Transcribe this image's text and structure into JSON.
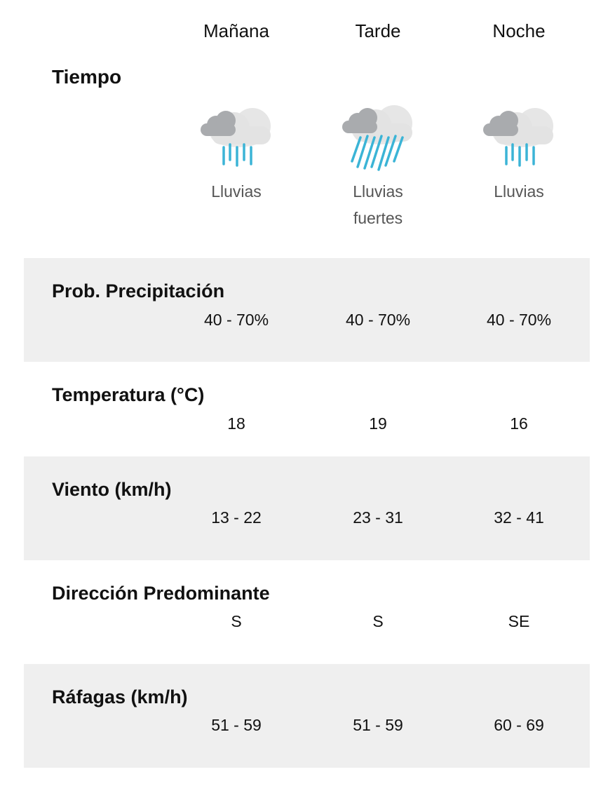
{
  "columns": [
    "Mañana",
    "Tarde",
    "Noche"
  ],
  "tiempo": {
    "label": "Tiempo",
    "conditions": [
      {
        "icon": "rain-cloud-icon",
        "text": "Lluvias"
      },
      {
        "icon": "heavy-rain-cloud-icon",
        "text": "Lluvias fuertes"
      },
      {
        "icon": "rain-cloud-icon",
        "text": "Lluvias"
      }
    ]
  },
  "rows": [
    {
      "label": "Prob. Precipitación",
      "values": [
        "40 - 70%",
        "40 - 70%",
        "40 - 70%"
      ]
    },
    {
      "label": "Temperatura (°C)",
      "values": [
        "18",
        "19",
        "16"
      ]
    },
    {
      "label": "Viento (km/h)",
      "values": [
        "13 - 22",
        "23 - 31",
        "32 - 41"
      ]
    },
    {
      "label": "Dirección Predominante",
      "values": [
        "S",
        "S",
        "SE"
      ]
    },
    {
      "label": "Ráfagas (km/h)",
      "values": [
        "51 - 59",
        "51 - 59",
        "60 - 69"
      ]
    }
  ],
  "colors": {
    "shaded_row": "#efefef",
    "rain": "#3bb4d6",
    "cloud_dark": "#a9abae",
    "cloud_light": "#e3e3e3"
  }
}
